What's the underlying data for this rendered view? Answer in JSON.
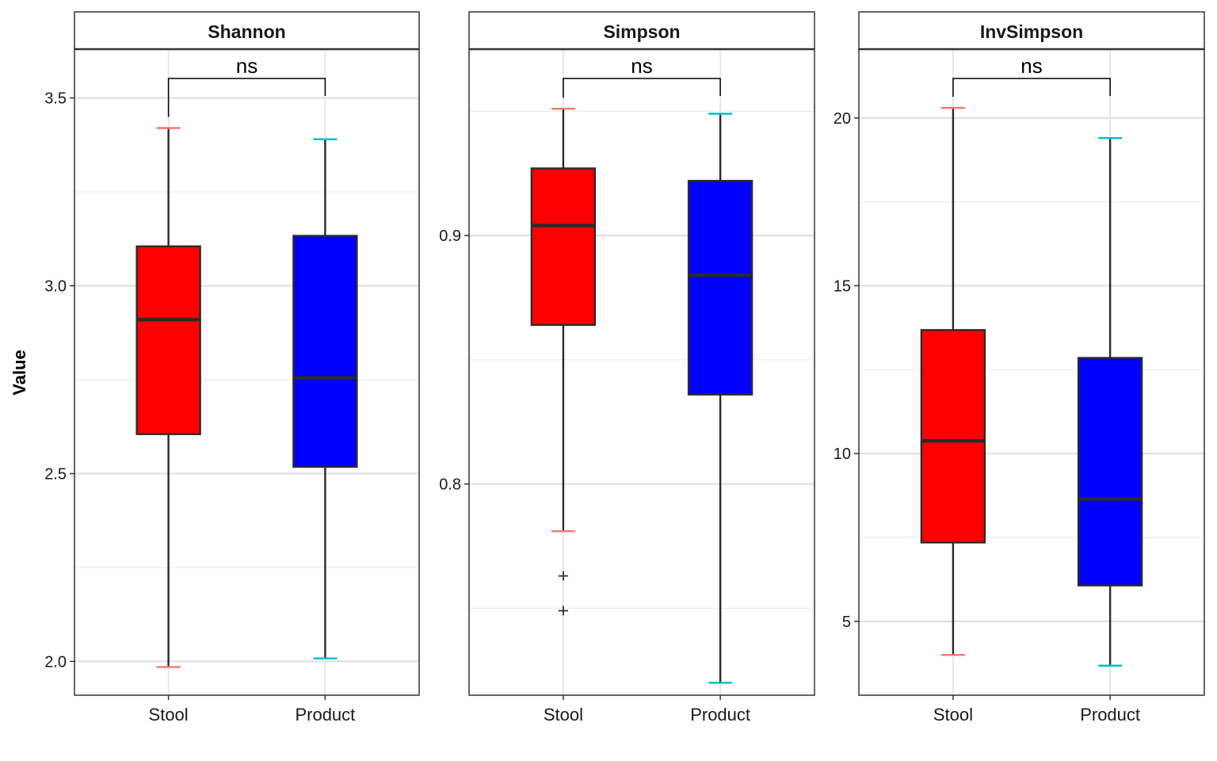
{
  "chart_data": {
    "type": "boxplot",
    "ylabel": "Value",
    "groups": [
      "Stool",
      "Product"
    ],
    "group_colors": {
      "Stool": {
        "fill": "#ff0000",
        "whisker_cap": "#f8766d"
      },
      "Product": {
        "fill": "#0000ff",
        "whisker_cap": "#00bfc4"
      }
    },
    "significance_label": "ns",
    "panels": [
      {
        "title": "Shannon",
        "ylim": [
          1.91,
          3.63
        ],
        "yticks": [
          2.0,
          2.5,
          3.0,
          3.5
        ],
        "ytick_labels": [
          "2.0",
          "2.5",
          "3.0",
          "3.5"
        ],
        "ns_label": "ns",
        "boxes": [
          {
            "group": "Stool",
            "x_label": "Stool",
            "min": 1.985,
            "q1": 2.605,
            "median": 2.91,
            "q3": 3.105,
            "max": 3.42,
            "outliers": []
          },
          {
            "group": "Product",
            "x_label": "Product",
            "min": 2.008,
            "q1": 2.518,
            "median": 2.755,
            "q3": 3.133,
            "max": 3.39,
            "outliers": []
          }
        ]
      },
      {
        "title": "Simpson",
        "ylim": [
          0.715,
          0.975
        ],
        "yticks": [
          0.8,
          0.9
        ],
        "ytick_labels": [
          "0.8",
          "0.9"
        ],
        "ns_label": "ns",
        "boxes": [
          {
            "group": "Stool",
            "x_label": "Stool",
            "min": 0.781,
            "q1": 0.864,
            "median": 0.904,
            "q3": 0.927,
            "max": 0.951,
            "outliers": [
              0.763,
              0.749
            ]
          },
          {
            "group": "Product",
            "x_label": "Product",
            "min": 0.72,
            "q1": 0.836,
            "median": 0.884,
            "q3": 0.922,
            "max": 0.949,
            "outliers": []
          }
        ]
      },
      {
        "title": "InvSimpson",
        "ylim": [
          2.8,
          22.05
        ],
        "yticks": [
          5,
          10,
          15,
          20
        ],
        "ytick_labels": [
          "5",
          "10",
          "15",
          "20"
        ],
        "ns_label": "ns",
        "boxes": [
          {
            "group": "Stool",
            "x_label": "Stool",
            "min": 4.0,
            "q1": 7.35,
            "median": 10.38,
            "q3": 13.68,
            "max": 20.3,
            "outliers": []
          },
          {
            "group": "Product",
            "x_label": "Product",
            "min": 3.68,
            "q1": 6.07,
            "median": 8.65,
            "q3": 12.85,
            "max": 19.4,
            "outliers": []
          }
        ]
      }
    ]
  }
}
